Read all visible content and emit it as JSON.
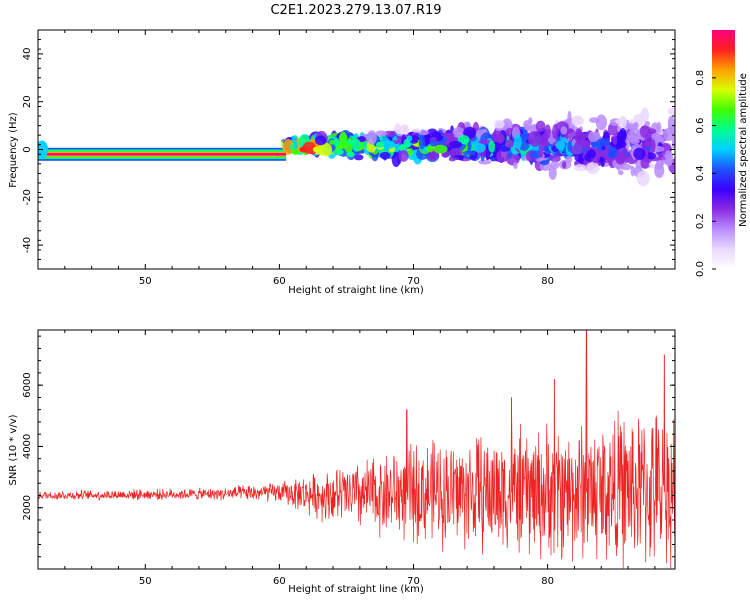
{
  "title": "C2E1.2023.279.13.07.R19",
  "colors": {
    "snr_line": "#ee2222",
    "spectro_background": "#ffffff",
    "colormap": [
      "#ffffff",
      "#ead8ff",
      "#b98cff",
      "#8a2be2",
      "#3a00ff",
      "#2050ff",
      "#00d0ff",
      "#00ff90",
      "#40ff00",
      "#d8ff00",
      "#ffa000",
      "#ff2020",
      "#ff0080"
    ]
  },
  "chart_data": [
    {
      "type": "heatmap",
      "name": "spectrogram",
      "xlabel": "Height of straight line (km)",
      "ylabel": "Frequency (Hz)",
      "xlim": [
        42,
        89.5
      ],
      "ylim": [
        -50,
        50
      ],
      "xticks": [
        50,
        60,
        70,
        80
      ],
      "yticks": [
        -40,
        -20,
        0,
        20,
        40
      ],
      "grid": false,
      "description_values": {
        "steady_tone": {
          "x_range": [
            42,
            60.5
          ],
          "frequency": -2,
          "amplitude": 0.95
        },
        "spread_region": {
          "x_range": [
            60.5,
            89.5
          ],
          "frequency_center": 0,
          "frequency_spread_start": 3,
          "frequency_spread_end": 18
        }
      }
    },
    {
      "type": "colorbar",
      "name": "amplitude-colorbar",
      "label": "Normalized spectral amplitude",
      "range": [
        0,
        1
      ],
      "ticks": [
        "0.0",
        "0.2",
        "0.4",
        "0.6",
        "0.8"
      ]
    },
    {
      "type": "line",
      "name": "snr",
      "xlabel": "Height of straight line (km)",
      "ylabel": "SNR (10 * v/v)",
      "xlim": [
        42,
        89.5
      ],
      "ylim": [
        0,
        7800
      ],
      "xticks": [
        50,
        60,
        70,
        80
      ],
      "yticks": [
        2000,
        4000,
        6000
      ],
      "grid": false,
      "envelope": [
        {
          "x": 42,
          "mean": 2400,
          "amp": 150
        },
        {
          "x": 55,
          "mean": 2450,
          "amp": 200
        },
        {
          "x": 60,
          "mean": 2500,
          "amp": 350
        },
        {
          "x": 63,
          "mean": 2400,
          "amp": 800
        },
        {
          "x": 66,
          "mean": 2400,
          "amp": 1200
        },
        {
          "x": 70,
          "mean": 2500,
          "amp": 1700
        },
        {
          "x": 75,
          "mean": 2500,
          "amp": 2000
        },
        {
          "x": 80,
          "mean": 2500,
          "amp": 2300
        },
        {
          "x": 85,
          "mean": 2600,
          "amp": 2600
        },
        {
          "x": 89.5,
          "mean": 2600,
          "amp": 2700
        }
      ],
      "peaks": [
        {
          "x": 69.5,
          "y": 5200
        },
        {
          "x": 77.3,
          "y": 5600
        },
        {
          "x": 82.9,
          "y": 7800
        },
        {
          "x": 88.7,
          "y": 7000
        },
        {
          "x": 80.5,
          "y": 6200
        }
      ]
    }
  ]
}
